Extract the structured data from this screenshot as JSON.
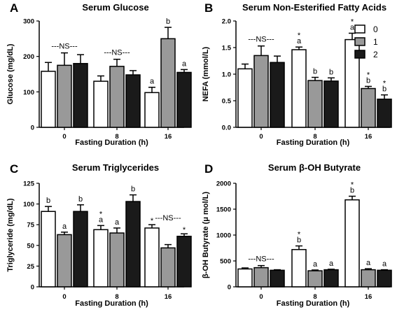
{
  "colors": {
    "fasting_0": "#ffffff",
    "fasting_1": "#999999",
    "fasting_2": "#1a1a1a"
  },
  "legend": {
    "placement": "top-right of panel B",
    "entries": [
      "0",
      "1",
      "2"
    ]
  },
  "chart_data": [
    {
      "type": "bar",
      "panel_label": "A",
      "title": "Serum Glucose",
      "xlabel": "Fasting Duration (h)",
      "ylabel": "Glucose (mg/dL)",
      "ylim": [
        0,
        300
      ],
      "yticks": [
        "0",
        "100",
        "200",
        "300"
      ],
      "categories": [
        "0",
        "8",
        "16"
      ],
      "series": [
        {
          "name": "0",
          "values": [
            158,
            130,
            98
          ],
          "errors": [
            25,
            15,
            15
          ]
        },
        {
          "name": "1",
          "values": [
            175,
            172,
            250
          ],
          "errors": [
            35,
            20,
            32
          ]
        },
        {
          "name": "2",
          "values": [
            180,
            148,
            155
          ],
          "errors": [
            25,
            12,
            8
          ]
        }
      ],
      "annotations": [
        {
          "text": "---NS---",
          "group": 0
        },
        {
          "text": "---NS---",
          "group": 1
        },
        {
          "text": "a",
          "group": 2,
          "series": 0
        },
        {
          "text": "b",
          "group": 2,
          "series": 1
        },
        {
          "text": "a",
          "group": 2,
          "series": 2
        }
      ]
    },
    {
      "type": "bar",
      "panel_label": "B",
      "title": "Serum Non-Esterified Fatty Acids",
      "xlabel": "Fasting Duration (h)",
      "ylabel": "NEFA (mmol/L)",
      "ylim": [
        0,
        2.0
      ],
      "yticks": [
        "0.0",
        "0.5",
        "1.0",
        "1.5",
        "2.0"
      ],
      "categories": [
        "0",
        "8",
        "16"
      ],
      "series": [
        {
          "name": "0",
          "values": [
            1.1,
            1.46,
            1.65
          ],
          "errors": [
            0.09,
            0.05,
            0.12
          ]
        },
        {
          "name": "1",
          "values": [
            1.35,
            0.88,
            0.73
          ],
          "errors": [
            0.18,
            0.06,
            0.04
          ]
        },
        {
          "name": "2",
          "values": [
            1.22,
            0.87,
            0.53
          ],
          "errors": [
            0.12,
            0.06,
            0.08
          ]
        }
      ],
      "annotations": [
        {
          "text": "---NS---",
          "group": 0
        },
        {
          "text": "a",
          "group": 1,
          "series": 0
        },
        {
          "text": "*",
          "group": 1,
          "series": 0
        },
        {
          "text": "b",
          "group": 1,
          "series": 1
        },
        {
          "text": "b",
          "group": 1,
          "series": 2
        },
        {
          "text": "a",
          "group": 2,
          "series": 0
        },
        {
          "text": "*",
          "group": 2,
          "series": 0
        },
        {
          "text": "b",
          "group": 2,
          "series": 1
        },
        {
          "text": "*",
          "group": 2,
          "series": 1
        },
        {
          "text": "b",
          "group": 2,
          "series": 2
        },
        {
          "text": "*",
          "group": 2,
          "series": 2
        }
      ]
    },
    {
      "type": "bar",
      "panel_label": "C",
      "title": "Serum Triglycerides",
      "xlabel": "Fasting Duration (h)",
      "ylabel": "Triglyceride (mg/dL)",
      "ylim": [
        0,
        125
      ],
      "yticks": [
        "0",
        "25",
        "50",
        "75",
        "100",
        "125"
      ],
      "categories": [
        "0",
        "8",
        "16"
      ],
      "series": [
        {
          "name": "0",
          "values": [
            91,
            69,
            71
          ],
          "errors": [
            6,
            5,
            4
          ]
        },
        {
          "name": "1",
          "values": [
            63,
            65,
            47
          ],
          "errors": [
            3,
            6,
            4
          ]
        },
        {
          "name": "2",
          "values": [
            91,
            103,
            61
          ],
          "errors": [
            8,
            8,
            3
          ]
        }
      ],
      "annotations": [
        {
          "text": "b",
          "group": 0,
          "series": 0
        },
        {
          "text": "a",
          "group": 0,
          "series": 1
        },
        {
          "text": "b",
          "group": 0,
          "series": 2
        },
        {
          "text": "a",
          "group": 1,
          "series": 0
        },
        {
          "text": "*",
          "group": 1,
          "series": 0
        },
        {
          "text": "a",
          "group": 1,
          "series": 1
        },
        {
          "text": "b",
          "group": 1,
          "series": 2
        },
        {
          "text": "---NS---",
          "group": 2
        },
        {
          "text": "*",
          "group": 2,
          "series": 0
        },
        {
          "text": "*",
          "group": 2,
          "series": 2
        }
      ]
    },
    {
      "type": "bar",
      "panel_label": "D",
      "title": "Serum β-OH Butyrate",
      "xlabel": "Fasting Duration (h)",
      "ylabel": "β-OH Butyrate (μ mol/L)",
      "ylim": [
        0,
        2000
      ],
      "yticks": [
        "0",
        "500",
        "1000",
        "1500",
        "2000"
      ],
      "categories": [
        "0",
        "8",
        "16"
      ],
      "series": [
        {
          "name": "0",
          "values": [
            345,
            720,
            1680
          ],
          "errors": [
            20,
            70,
            70
          ]
        },
        {
          "name": "1",
          "values": [
            370,
            310,
            330
          ],
          "errors": [
            40,
            15,
            20
          ]
        },
        {
          "name": "2",
          "values": [
            320,
            330,
            320
          ],
          "errors": [
            10,
            10,
            10
          ]
        }
      ],
      "annotations": [
        {
          "text": "---NS---",
          "group": 0
        },
        {
          "text": "b",
          "group": 1,
          "series": 0
        },
        {
          "text": "*",
          "group": 1,
          "series": 0
        },
        {
          "text": "a",
          "group": 1,
          "series": 1
        },
        {
          "text": "a",
          "group": 1,
          "series": 2
        },
        {
          "text": "b",
          "group": 2,
          "series": 0
        },
        {
          "text": "*",
          "group": 2,
          "series": 0
        },
        {
          "text": "a",
          "group": 2,
          "series": 1
        },
        {
          "text": "a",
          "group": 2,
          "series": 2
        }
      ]
    }
  ]
}
